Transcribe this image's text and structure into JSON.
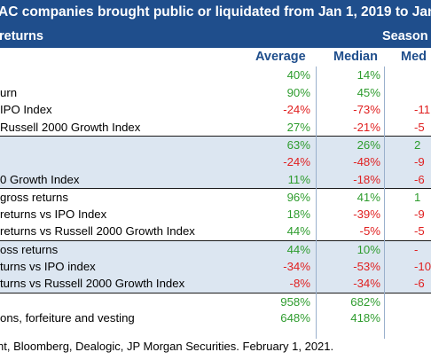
{
  "title": "AC companies brought public or liquidated from Jan 1, 2019 to Jan",
  "subheader": {
    "left": "returns",
    "right": "Season"
  },
  "columns": {
    "average": "Average",
    "median": "Median",
    "seasoned_median": "Med"
  },
  "rows": [
    {
      "label": "",
      "avg": "40%",
      "med": "14%",
      "smed": "",
      "avg_c": "pos",
      "med_c": "pos",
      "smed_c": "",
      "shade": false,
      "topline": false
    },
    {
      "label": "urn",
      "avg": "90%",
      "med": "45%",
      "smed": "",
      "avg_c": "pos",
      "med_c": "pos",
      "smed_c": "",
      "shade": false,
      "topline": false
    },
    {
      "label": "IPO Index",
      "avg": "-24%",
      "med": "-73%",
      "smed": "-11",
      "avg_c": "neg",
      "med_c": "neg",
      "smed_c": "neg",
      "shade": false,
      "topline": false
    },
    {
      "label": "Russell 2000 Growth Index",
      "avg": "27%",
      "med": "-21%",
      "smed": "-5",
      "avg_c": "pos",
      "med_c": "neg",
      "smed_c": "neg",
      "shade": false,
      "topline": false
    },
    {
      "label": "",
      "avg": "63%",
      "med": "26%",
      "smed": "2",
      "avg_c": "pos",
      "med_c": "pos",
      "smed_c": "pos",
      "shade": true,
      "topline": true
    },
    {
      "label": "",
      "avg": "-24%",
      "med": "-48%",
      "smed": "-9",
      "avg_c": "neg",
      "med_c": "neg",
      "smed_c": "neg",
      "shade": true,
      "topline": false
    },
    {
      "label": "0 Growth Index",
      "avg": "11%",
      "med": "-18%",
      "smed": "-6",
      "avg_c": "pos",
      "med_c": "neg",
      "smed_c": "neg",
      "shade": true,
      "topline": false
    },
    {
      "label": "gross returns",
      "avg": "96%",
      "med": "41%",
      "smed": "1",
      "avg_c": "pos",
      "med_c": "pos",
      "smed_c": "pos",
      "shade": false,
      "topline": true
    },
    {
      "label": "returns vs IPO Index",
      "avg": "18%",
      "med": "-39%",
      "smed": "-9",
      "avg_c": "pos",
      "med_c": "neg",
      "smed_c": "neg",
      "shade": false,
      "topline": false
    },
    {
      "label": "returns vs Russell 2000 Growth Index",
      "avg": "44%",
      "med": "-5%",
      "smed": "-5",
      "avg_c": "pos",
      "med_c": "neg",
      "smed_c": "neg",
      "shade": false,
      "topline": false
    },
    {
      "label": "oss returns",
      "avg": "44%",
      "med": "10%",
      "smed": "-",
      "avg_c": "pos",
      "med_c": "pos",
      "smed_c": "neg",
      "shade": true,
      "topline": true
    },
    {
      "label": "turns vs IPO index",
      "avg": "-34%",
      "med": "-53%",
      "smed": "-10",
      "avg_c": "neg",
      "med_c": "neg",
      "smed_c": "neg",
      "shade": true,
      "topline": false
    },
    {
      "label": "turns vs Russell 2000 Growth Index",
      "avg": "-8%",
      "med": "-34%",
      "smed": "-6",
      "avg_c": "neg",
      "med_c": "neg",
      "smed_c": "neg",
      "shade": true,
      "topline": false
    },
    {
      "label": "",
      "avg": "958%",
      "med": "682%",
      "smed": "",
      "avg_c": "pos",
      "med_c": "pos",
      "smed_c": "",
      "shade": false,
      "topline": true
    },
    {
      "label": "ons, forfeiture and vesting",
      "avg": "648%",
      "med": "418%",
      "smed": "",
      "avg_c": "pos",
      "med_c": "pos",
      "smed_c": "",
      "shade": false,
      "topline": false
    }
  ],
  "footer": "nt, Bloomberg, Dealogic, JP Morgan Securities. February 1, 2021.",
  "colors": {
    "header_bg": "#1f4e8c",
    "shade_bg": "#dce6f1",
    "positive": "#2e9c2e",
    "negative": "#e02020"
  }
}
